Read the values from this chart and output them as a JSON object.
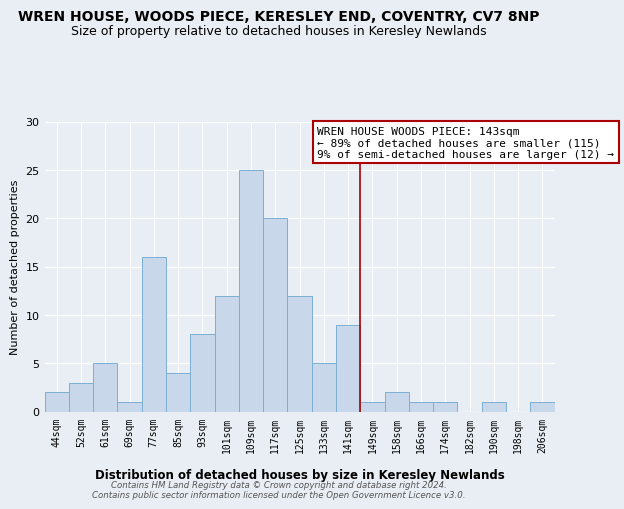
{
  "title": "WREN HOUSE, WOODS PIECE, KERESLEY END, COVENTRY, CV7 8NP",
  "subtitle": "Size of property relative to detached houses in Keresley Newlands",
  "xlabel": "Distribution of detached houses by size in Keresley Newlands",
  "ylabel": "Number of detached properties",
  "categories": [
    "44sqm",
    "52sqm",
    "61sqm",
    "69sqm",
    "77sqm",
    "85sqm",
    "93sqm",
    "101sqm",
    "109sqm",
    "117sqm",
    "125sqm",
    "133sqm",
    "141sqm",
    "149sqm",
    "158sqm",
    "166sqm",
    "174sqm",
    "182sqm",
    "190sqm",
    "198sqm",
    "206sqm"
  ],
  "values": [
    2,
    3,
    5,
    1,
    16,
    4,
    8,
    12,
    25,
    20,
    12,
    5,
    9,
    1,
    2,
    1,
    1,
    0,
    1,
    0,
    1
  ],
  "bar_color": "#c8d8ea",
  "bar_edge_color": "#7bafd4",
  "reference_line_x_label": "141sqm",
  "reference_line_color": "#aa0000",
  "annotation_title": "WREN HOUSE WOODS PIECE: 143sqm",
  "annotation_line1": "← 89% of detached houses are smaller (115)",
  "annotation_line2": "9% of semi-detached houses are larger (12) →",
  "ylim": [
    0,
    30
  ],
  "yticks": [
    0,
    5,
    10,
    15,
    20,
    25,
    30
  ],
  "footer_line1": "Contains HM Land Registry data © Crown copyright and database right 2024.",
  "footer_line2": "Contains public sector information licensed under the Open Government Licence v3.0.",
  "bg_color": "#e8eef4",
  "grid_color": "#ffffff",
  "title_fontsize": 10,
  "subtitle_fontsize": 9
}
